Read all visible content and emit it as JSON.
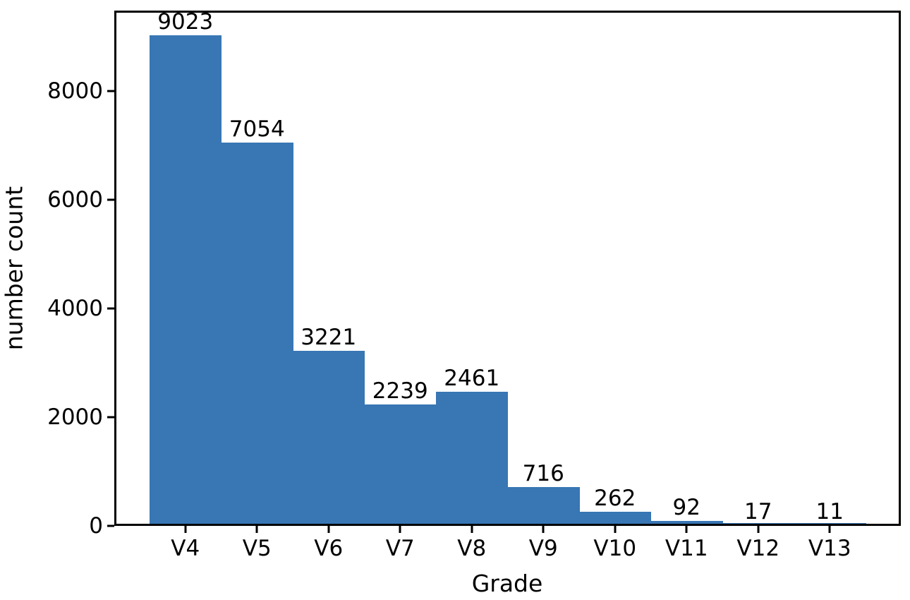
{
  "chart_data": {
    "type": "bar",
    "title": "",
    "xlabel": "Grade",
    "ylabel": "number count",
    "categories": [
      "V4",
      "V5",
      "V6",
      "V7",
      "V8",
      "V9",
      "V10",
      "V11",
      "V12",
      "V13"
    ],
    "values": [
      9023,
      7054,
      3221,
      2239,
      2461,
      716,
      262,
      92,
      17,
      11
    ],
    "bar_labels": [
      "9023",
      "7054",
      "3221",
      "2239",
      "2461",
      "716",
      "262",
      "92",
      "17",
      "11"
    ],
    "yticks": [
      0,
      2000,
      4000,
      6000,
      8000
    ],
    "ytick_labels": [
      "0",
      "2000",
      "4000",
      "6000",
      "8000"
    ],
    "ylim": [
      0,
      9474
    ],
    "bar_color": "#3876b4",
    "axis_color": "#000000",
    "text_color": "#000000",
    "background_color": "#ffffff",
    "grid": false,
    "legend": null,
    "bar_gap": 0
  }
}
